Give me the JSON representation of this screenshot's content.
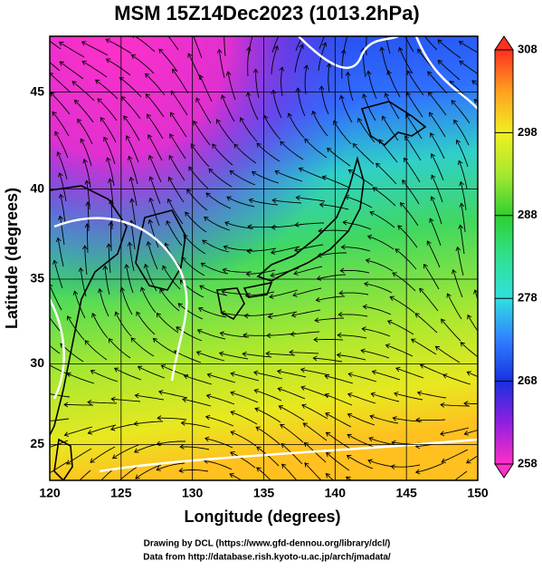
{
  "chart_data": {
    "type": "map",
    "title": "MSM 15Z14Dec2023 (1013.2hPa)",
    "xlabel": "Longitude (degrees)",
    "ylabel": "Latitude  (degrees)",
    "xlim": [
      120,
      150
    ],
    "ylim": [
      22.7,
      47.7
    ],
    "xticks": [
      120,
      125,
      130,
      135,
      140,
      145,
      150
    ],
    "yticks": [
      25,
      30,
      35,
      40,
      45
    ],
    "grid": true,
    "colorbar": {
      "lim": [
        258,
        308
      ],
      "ticks": [
        258,
        268,
        278,
        288,
        298,
        308
      ],
      "colors": [
        "#ff30c8",
        "#9020e0",
        "#1830e0",
        "#3080ff",
        "#30e0e0",
        "#30e090",
        "#30d030",
        "#a8e830",
        "#f0f020",
        "#ffa020",
        "#ff3020"
      ]
    },
    "credits": [
      "Drawing by DCL (https://www.gfd-dennou.org/library/dcl/)",
      "Data from http://database.rish.kyoto-u.ac.jp/arch/jmadata/"
    ]
  }
}
